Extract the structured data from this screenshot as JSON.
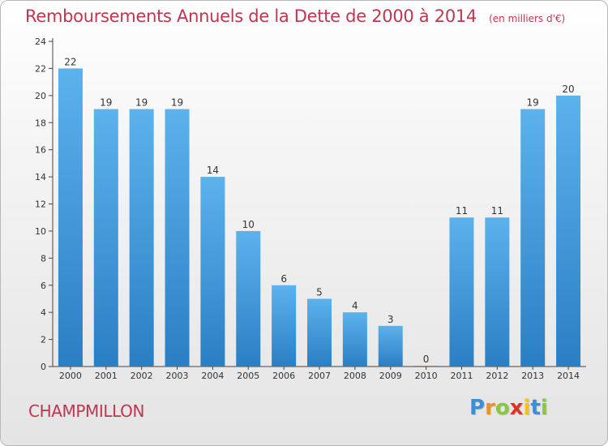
{
  "title": "Remboursements Annuels de la Dette de 2000 à 2014",
  "subtitle": "(en milliers d'€)",
  "commune": "CHAMPMILLON",
  "brand": {
    "letters": [
      "P",
      "r",
      "o",
      "x",
      "i",
      "t",
      "i"
    ],
    "colors": [
      "#3b8fd6",
      "#e8922a",
      "#8cc63f",
      "#d9362b",
      "#f0c419",
      "#3b8fd6",
      "#8cc63f"
    ]
  },
  "colors": {
    "title": "#c1364e",
    "bar_light": "#5cb2ec",
    "bar_dark": "#2a7fc4"
  },
  "chart_data": {
    "type": "bar",
    "title": "Remboursements Annuels de la Dette de 2000 à 2014",
    "xlabel": "",
    "ylabel": "",
    "categories": [
      "2000",
      "2001",
      "2002",
      "2003",
      "2004",
      "2005",
      "2006",
      "2007",
      "2008",
      "2009",
      "2010",
      "2011",
      "2012",
      "2013",
      "2014"
    ],
    "values": [
      22,
      19,
      19,
      19,
      14,
      10,
      6,
      5,
      4,
      3,
      0,
      11,
      11,
      19,
      20
    ],
    "ylim": [
      0,
      24
    ],
    "yticks": [
      0,
      2,
      4,
      6,
      8,
      10,
      12,
      14,
      16,
      18,
      20,
      22,
      24
    ],
    "grid": false,
    "legend": "none"
  }
}
